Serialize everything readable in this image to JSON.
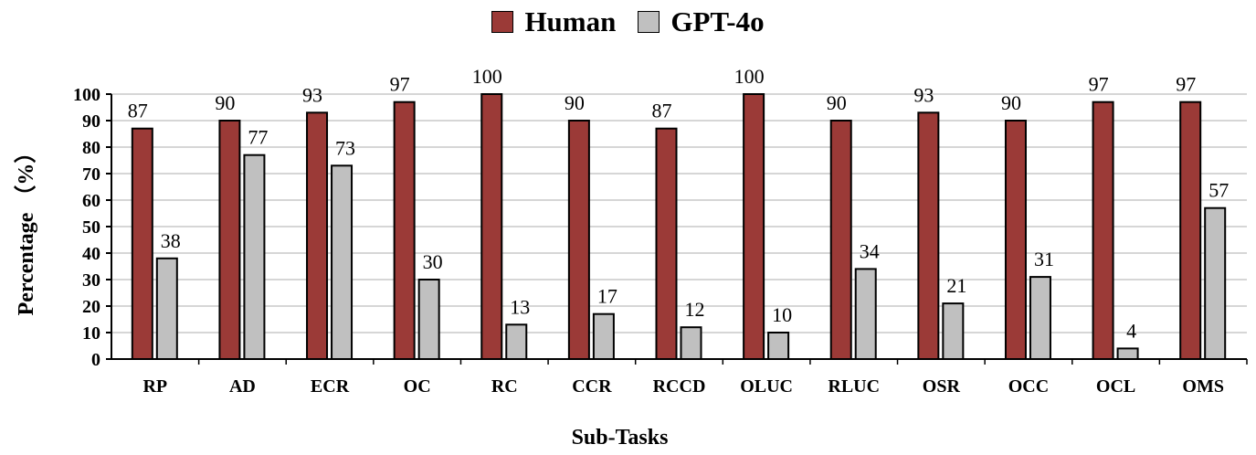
{
  "chart_data": {
    "type": "bar",
    "categories": [
      "RP",
      "AD",
      "ECR",
      "OC",
      "RC",
      "CCR",
      "RCCD",
      "OLUC",
      "RLUC",
      "OSR",
      "OCC",
      "OCL",
      "OMS"
    ],
    "series": [
      {
        "name": "Human",
        "color": "#9b3a37",
        "values": [
          87,
          90,
          93,
          97,
          100,
          90,
          87,
          100,
          90,
          93,
          90,
          97,
          97
        ]
      },
      {
        "name": "GPT-4o",
        "color": "#c0c0c0",
        "values": [
          38,
          77,
          73,
          30,
          13,
          17,
          12,
          10,
          34,
          21,
          31,
          4,
          57
        ]
      }
    ],
    "xlabel": "Sub-Tasks",
    "ylabel": "Percentage （%）",
    "ylim": [
      0,
      100
    ],
    "yticks": [
      0,
      10,
      20,
      30,
      40,
      50,
      60,
      70,
      80,
      90,
      100
    ],
    "grid": true,
    "legend": "top-center"
  }
}
